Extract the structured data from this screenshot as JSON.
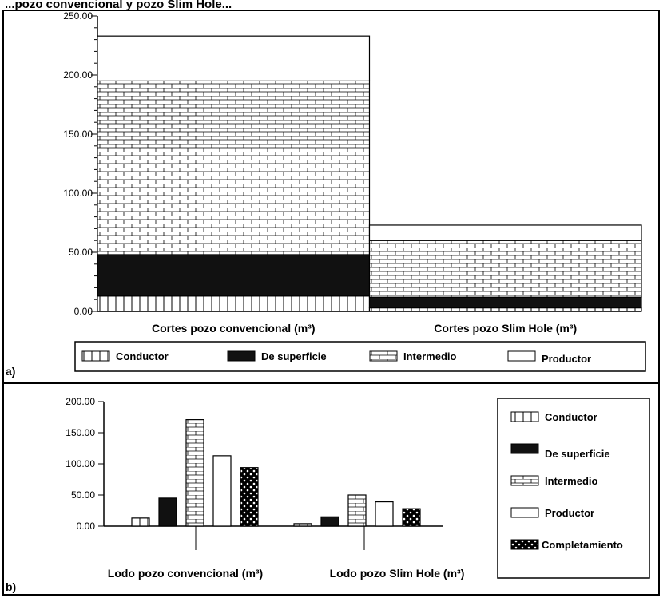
{
  "title_fragment": "...pozo convencional y pozo Slim Hole...",
  "chart_data": [
    {
      "id": "a",
      "panel_label": "a)",
      "type": "bar",
      "stacked": true,
      "categories": [
        "Cortes pozo convencional (m³)",
        "Cortes pozo Slim Hole (m³)"
      ],
      "ylim": [
        0,
        250
      ],
      "yticks": [
        "0.00",
        "50.00",
        "100.00",
        "150.00",
        "200.00",
        "250.00"
      ],
      "legend_position": "bottom",
      "series": [
        {
          "name": "Conductor",
          "pattern": "vertical-lines",
          "values": [
            13,
            3
          ]
        },
        {
          "name": "De superficie",
          "pattern": "solid-black",
          "values": [
            35,
            9
          ]
        },
        {
          "name": "Intermedio",
          "pattern": "bricks",
          "values": [
            147,
            48
          ]
        },
        {
          "name": "Productor",
          "pattern": "white",
          "values": [
            38,
            13
          ]
        }
      ]
    },
    {
      "id": "b",
      "panel_label": "b)",
      "type": "bar",
      "stacked": false,
      "categories": [
        "Lodo pozo convencional (m³)",
        "Lodo pozo Slim Hole (m³)"
      ],
      "ylim": [
        0,
        200
      ],
      "yticks": [
        "0.00",
        "50.00",
        "100.00",
        "150.00",
        "200.00"
      ],
      "legend_position": "right",
      "series": [
        {
          "name": "Conductor",
          "pattern": "vertical-lines",
          "values": [
            13,
            4
          ]
        },
        {
          "name": "De superficie",
          "pattern": "solid-black",
          "values": [
            45,
            15
          ]
        },
        {
          "name": "Intermedio",
          "pattern": "bricks",
          "values": [
            171,
            50
          ]
        },
        {
          "name": "Productor",
          "pattern": "white",
          "values": [
            113,
            39
          ]
        },
        {
          "name": "Completamiento",
          "pattern": "dots",
          "values": [
            94,
            28
          ]
        }
      ]
    }
  ]
}
